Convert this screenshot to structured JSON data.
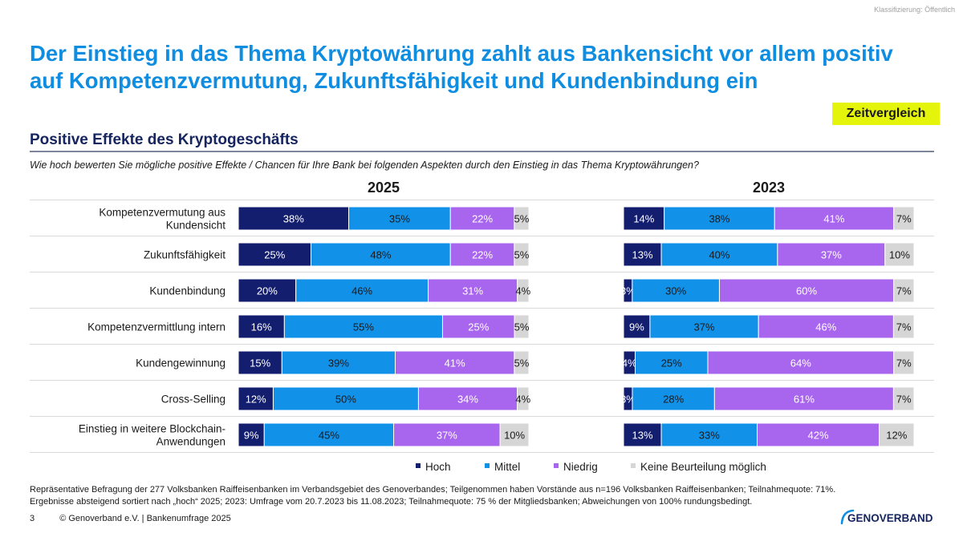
{
  "classification": "Klassifizierung: Öffentlich",
  "title": "Der Einstieg in das Thema Kryptowährung zahlt aus Bankensicht vor allem positiv auf Kompetenzvermutung, Zukunftsfähigkeit und Kundenbindung ein",
  "badge": "Zeitvergleich",
  "subtitle": "Positive Effekte des Kryptogeschäfts",
  "question": "Wie hoch bewerten Sie mögliche positive Effekte / Chancen für Ihre Bank bei folgenden Aspekten durch den Einstieg in das Thema Kryptowährungen?",
  "footnote": {
    "line1": "Repräsentative Befragung der 277 Volksbanken Raiffeisenbanken im Verbandsgebiet des Genoverbandes; Teilgenommen haben Vorstände aus n=196 Volksbanken Raiffeisenbanken; Teilnahmequote: 71%.",
    "line2": "Ergebnisse absteigend sortiert nach „hoch“ 2025; 2023: Umfrage vom 20.7.2023 bis 11.08.2023; Teilnahmequote: 75 % der Mitgliedsbanken; Abweichungen von 100% rundungsbedingt."
  },
  "footer": {
    "page": "3",
    "copyright": "© Genoverband e.V. | Bankenumfrage 2025"
  },
  "logo": {
    "text": "GENOVERBAND"
  },
  "colors": {
    "title": "#0f8de0",
    "hoch": "#141e6e",
    "mittel": "#1291e8",
    "niedrig": "#a865ee",
    "keine": "#d6d6d6",
    "badge": "#e4f40a"
  },
  "chart_data": {
    "type": "bar",
    "orientation": "horizontal-stacked-100",
    "categories": [
      [
        "Kompetenzvermutung aus",
        "Kundensicht"
      ],
      [
        "Zukunftsfähigkeit"
      ],
      [
        "Kundenbindung"
      ],
      [
        "Kompetenzvermittlung intern"
      ],
      [
        "Kundengewinnung"
      ],
      [
        "Cross-Selling"
      ],
      [
        "Einstieg in weitere Blockchain-",
        "Anwendungen"
      ]
    ],
    "legend": [
      "Hoch",
      "Mittel",
      "Niedrig",
      "Keine Beurteilung möglich"
    ],
    "panels": [
      {
        "title": "2025",
        "series": [
          {
            "name": "Hoch",
            "values": [
              38,
              25,
              20,
              16,
              15,
              12,
              9
            ]
          },
          {
            "name": "Mittel",
            "values": [
              35,
              48,
              46,
              55,
              39,
              50,
              45
            ]
          },
          {
            "name": "Niedrig",
            "values": [
              22,
              22,
              31,
              25,
              41,
              34,
              37
            ]
          },
          {
            "name": "Keine Beurteilung möglich",
            "values": [
              5,
              5,
              4,
              5,
              5,
              4,
              10
            ]
          }
        ]
      },
      {
        "title": "2023",
        "series": [
          {
            "name": "Hoch",
            "values": [
              14,
              13,
              3,
              9,
              4,
              3,
              13
            ]
          },
          {
            "name": "Mittel",
            "values": [
              38,
              40,
              30,
              37,
              25,
              28,
              33
            ]
          },
          {
            "name": "Niedrig",
            "values": [
              41,
              37,
              60,
              46,
              64,
              61,
              42
            ]
          },
          {
            "name": "Keine Beurteilung möglich",
            "values": [
              7,
              10,
              7,
              7,
              7,
              7,
              12
            ]
          }
        ]
      }
    ],
    "xlim": [
      0,
      100
    ]
  }
}
